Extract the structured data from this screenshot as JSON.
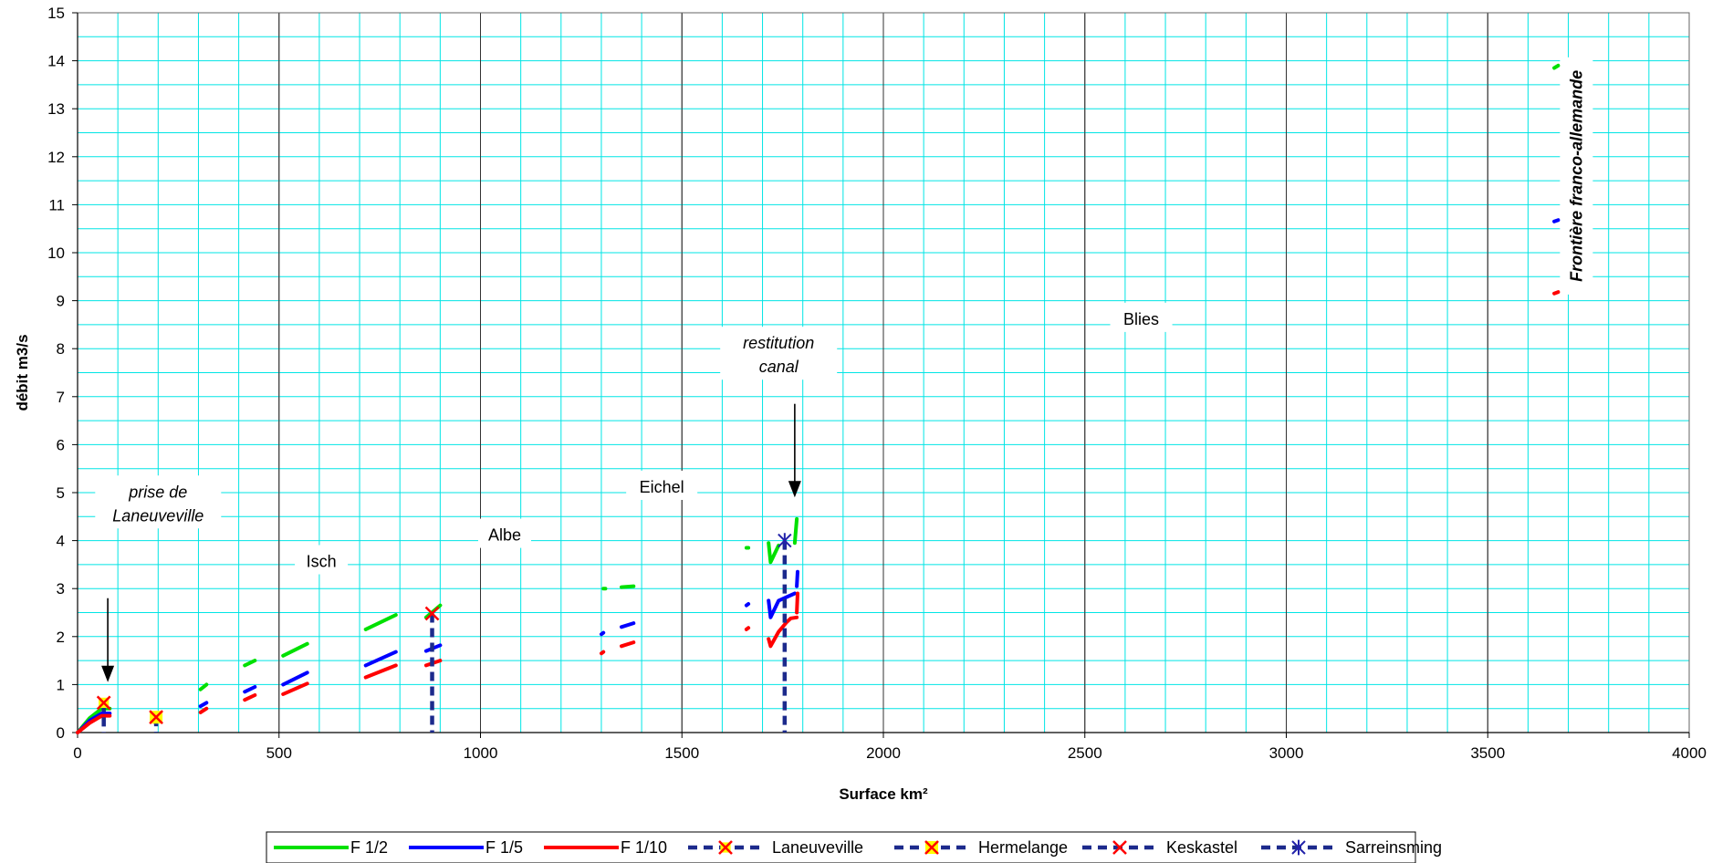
{
  "chart_data": {
    "type": "line",
    "title": "",
    "xlabel": "Surface km²",
    "ylabel": "débit m3/s",
    "xlim": [
      0,
      4000
    ],
    "ylim": [
      0,
      15
    ],
    "x_ticks": [
      0,
      500,
      1000,
      1500,
      2000,
      2500,
      3000,
      3500,
      4000
    ],
    "y_ticks": [
      0,
      1,
      2,
      3,
      4,
      5,
      6,
      7,
      8,
      9,
      10,
      11,
      12,
      13,
      14,
      15
    ],
    "grid": true,
    "legend_position": "bottom",
    "series": [
      {
        "name": "F 1/2",
        "color": "#00e000",
        "style": "solid",
        "segments": [
          [
            [
              0,
              0
            ],
            [
              30,
              0.3
            ],
            [
              60,
              0.5
            ],
            [
              80,
              0.5
            ]
          ],
          [
            [
              190,
              0.3
            ],
            [
              200,
              0.35
            ]
          ],
          [
            [
              305,
              0.9
            ],
            [
              320,
              1.0
            ]
          ],
          [
            [
              415,
              1.4
            ],
            [
              440,
              1.5
            ]
          ],
          [
            [
              510,
              1.6
            ],
            [
              570,
              1.85
            ]
          ],
          [
            [
              715,
              2.15
            ],
            [
              790,
              2.45
            ]
          ],
          [
            [
              865,
              2.4
            ],
            [
              900,
              2.65
            ]
          ],
          [
            [
              1305,
              3.0
            ],
            [
              1310,
              3.0
            ]
          ],
          [
            [
              1350,
              3.03
            ],
            [
              1380,
              3.05
            ]
          ],
          [
            [
              1660,
              3.85
            ],
            [
              1665,
              3.85
            ]
          ],
          [
            [
              1715,
              3.95
            ],
            [
              1720,
              3.55
            ],
            [
              1740,
              3.9
            ]
          ],
          [
            [
              1780,
              3.95
            ],
            [
              1785,
              4.45
            ]
          ],
          [
            [
              3665,
              13.85
            ],
            [
              3675,
              13.9
            ]
          ],
          [
            [
              3735,
              14.0
            ],
            [
              3750,
              14.0
            ]
          ]
        ]
      },
      {
        "name": "F 1/5",
        "color": "#0000ff",
        "style": "solid",
        "segments": [
          [
            [
              0,
              0
            ],
            [
              30,
              0.25
            ],
            [
              60,
              0.4
            ],
            [
              80,
              0.4
            ]
          ],
          [
            [
              190,
              0.25
            ],
            [
              200,
              0.3
            ]
          ],
          [
            [
              305,
              0.55
            ],
            [
              320,
              0.62
            ]
          ],
          [
            [
              415,
              0.85
            ],
            [
              440,
              0.95
            ]
          ],
          [
            [
              510,
              1.0
            ],
            [
              570,
              1.25
            ]
          ],
          [
            [
              715,
              1.4
            ],
            [
              790,
              1.68
            ]
          ],
          [
            [
              865,
              1.7
            ],
            [
              900,
              1.82
            ]
          ],
          [
            [
              1300,
              2.05
            ],
            [
              1305,
              2.08
            ]
          ],
          [
            [
              1350,
              2.2
            ],
            [
              1380,
              2.28
            ]
          ],
          [
            [
              1660,
              2.65
            ],
            [
              1665,
              2.68
            ]
          ],
          [
            [
              1715,
              2.75
            ],
            [
              1720,
              2.4
            ],
            [
              1740,
              2.75
            ],
            [
              1780,
              2.9
            ]
          ],
          [
            [
              1785,
              3.05
            ],
            [
              1787,
              3.35
            ]
          ],
          [
            [
              3665,
              10.65
            ],
            [
              3675,
              10.68
            ]
          ],
          [
            [
              3735,
              10.72
            ],
            [
              3750,
              10.78
            ]
          ]
        ]
      },
      {
        "name": "F 1/10",
        "color": "#ff0000",
        "style": "solid",
        "segments": [
          [
            [
              0,
              0
            ],
            [
              30,
              0.2
            ],
            [
              60,
              0.35
            ],
            [
              80,
              0.35
            ]
          ],
          [
            [
              190,
              0.22
            ],
            [
              200,
              0.25
            ]
          ],
          [
            [
              305,
              0.42
            ],
            [
              320,
              0.5
            ]
          ],
          [
            [
              415,
              0.68
            ],
            [
              440,
              0.78
            ]
          ],
          [
            [
              510,
              0.8
            ],
            [
              570,
              1.02
            ]
          ],
          [
            [
              715,
              1.15
            ],
            [
              790,
              1.4
            ]
          ],
          [
            [
              865,
              1.4
            ],
            [
              900,
              1.5
            ]
          ],
          [
            [
              1300,
              1.65
            ],
            [
              1305,
              1.68
            ]
          ],
          [
            [
              1350,
              1.8
            ],
            [
              1380,
              1.88
            ]
          ],
          [
            [
              1660,
              2.15
            ],
            [
              1665,
              2.18
            ]
          ],
          [
            [
              1715,
              1.95
            ],
            [
              1720,
              1.8
            ],
            [
              1740,
              2.1
            ],
            [
              1760,
              2.3
            ],
            [
              1770,
              2.38
            ],
            [
              1785,
              2.4
            ]
          ],
          [
            [
              1785,
              2.5
            ],
            [
              1787,
              2.9
            ]
          ],
          [
            [
              3665,
              9.15
            ],
            [
              3675,
              9.18
            ]
          ],
          [
            [
              3735,
              9.22
            ],
            [
              3750,
              9.28
            ]
          ]
        ]
      },
      {
        "name": "Laneuveville",
        "color": "#1c2a8c",
        "marker_color": "#ff0000",
        "marker_fill": "#ffff00",
        "style": "dashed",
        "points": [
          [
            65,
            0.62
          ],
          [
            65,
            0
          ]
        ]
      },
      {
        "name": "Hermelange",
        "color": "#1c2a8c",
        "marker_color": "#ff0000",
        "marker_fill": "#ffff00",
        "style": "dashed",
        "points": [
          [
            195,
            0.32
          ],
          [
            195,
            0
          ]
        ]
      },
      {
        "name": "Keskastel",
        "color": "#1c2a8c",
        "marker_color": "#ff0000",
        "style": "dashed",
        "points": [
          [
            880,
            2.48
          ],
          [
            880,
            0
          ]
        ]
      },
      {
        "name": "Sarreinsming",
        "color": "#1c2a8c",
        "marker_color": "#2222aa",
        "style": "dashed",
        "points": [
          [
            1755,
            4.0
          ],
          [
            1755,
            0
          ]
        ]
      }
    ],
    "annotations": [
      {
        "lines": [
          "prise de",
          "Laneuveville"
        ],
        "italic": true,
        "x": 200,
        "y": 4.9
      },
      {
        "lines": [
          "Isch"
        ],
        "italic": false,
        "x": 605,
        "y": 3.45
      },
      {
        "lines": [
          "Albe"
        ],
        "italic": false,
        "x": 1060,
        "y": 4.0
      },
      {
        "lines": [
          "Eichel"
        ],
        "italic": false,
        "x": 1450,
        "y": 5.0
      },
      {
        "lines": [
          "restitution",
          "canal"
        ],
        "italic": true,
        "x": 1740,
        "y": 8.0
      },
      {
        "lines": [
          "Blies"
        ],
        "italic": false,
        "x": 2640,
        "y": 8.5
      },
      {
        "lines": [
          "Frontière franco-allemande"
        ],
        "italic": true,
        "rotated": true,
        "x": 3720,
        "y": 11.6
      }
    ],
    "arrows": [
      {
        "x": 75,
        "y_from": 2.8,
        "y_to": 1.05
      },
      {
        "x": 1780,
        "y_from": 6.85,
        "y_to": 4.9
      }
    ]
  }
}
